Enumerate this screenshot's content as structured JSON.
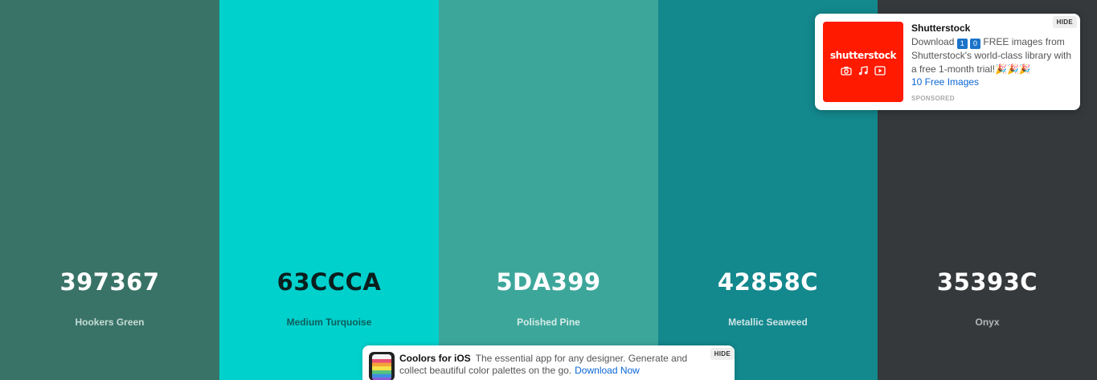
{
  "palette": {
    "swatches": [
      {
        "hex": "397367",
        "name": "Hookers Green",
        "bg": "#397367",
        "text_color": "#ffffff",
        "name_color": "#c6dcd6"
      },
      {
        "hex": "63CCCA",
        "name": "Medium Turquoise",
        "bg": "#00d1cd",
        "text_color": "#0a1f1e",
        "name_color": "#0e5e5c"
      },
      {
        "hex": "5DA399",
        "name": "Polished Pine",
        "bg": "#3da69b",
        "text_color": "#ffffff",
        "name_color": "#d6ece8"
      },
      {
        "hex": "42858C",
        "name": "Metallic Seaweed",
        "bg": "#13888d",
        "text_color": "#ffffff",
        "name_color": "#cfe5e6"
      },
      {
        "hex": "35393C",
        "name": "Onyx",
        "bg": "#35393c",
        "text_color": "#ffffff",
        "name_color": "#b5b9bb"
      }
    ]
  },
  "ad_card": {
    "logo_text": "shutterstock",
    "logo_bg": "#ff1a00",
    "title": "Shutterstock",
    "body_prefix": "Download",
    "digit_1": "1",
    "digit_2": "0",
    "body_suffix": "FREE images from Shutterstock's world-class library with a free 1-month trial!",
    "emoji": "🎉🎉🎉",
    "cta": "10 Free Images",
    "sponsored": "SPONSORED",
    "hide": "HIDE",
    "icons": [
      "camera-icon",
      "music-note-icon",
      "play-icon"
    ]
  },
  "ios_bar": {
    "title": "Coolors for iOS",
    "text": "The essential app for any designer. Generate and collect beautiful color palettes on the go.",
    "cta": "Download Now",
    "hide": "HIDE"
  }
}
